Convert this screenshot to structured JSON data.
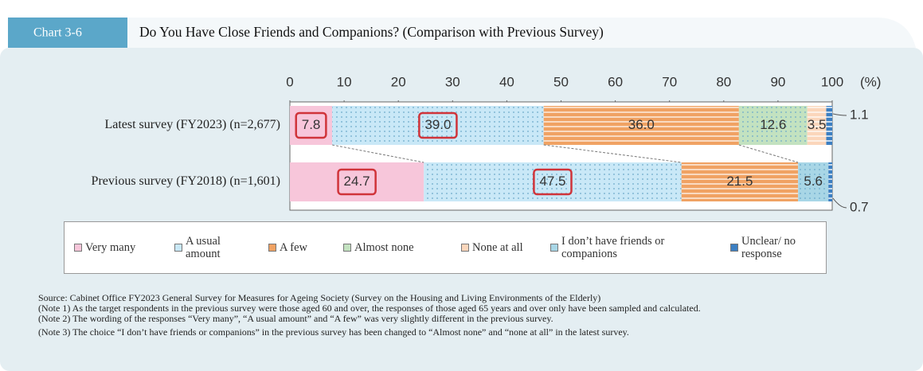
{
  "chart_data": {
    "type": "stacked_barh",
    "chart_number": "Chart 3-6",
    "title": "Do You Have Close Friends and Companions? (Comparison with Previous Survey)",
    "unit_label": "(%)",
    "categories": [
      "Latest survey (FY2023) (n=2,677)",
      "Previous survey (FY2018) (n=1,601)"
    ],
    "series": [
      {
        "name": "Very many",
        "color": "#f7c6da",
        "pattern": "solid",
        "values": [
          7.8,
          24.7
        ],
        "value_labels": [
          "7.8",
          "24.7"
        ]
      },
      {
        "name": "A usual amount",
        "color": "#c9e8f7",
        "pattern": "dots",
        "values": [
          39.0,
          47.5
        ],
        "value_labels": [
          "39.0",
          "47.5"
        ]
      },
      {
        "name": "A few",
        "color": "#f0a263",
        "pattern": "stripes",
        "values": [
          36.0,
          21.5
        ],
        "value_labels": [
          "36.0",
          "21.5"
        ]
      },
      {
        "name": "Almost none",
        "color": "#c3e2c0",
        "pattern": "dots",
        "values": [
          12.6,
          null
        ],
        "value_labels": [
          "12.6",
          null
        ]
      },
      {
        "name": "None at all",
        "color": "#fbd6bb",
        "pattern": "stripes",
        "values": [
          3.5,
          null
        ],
        "value_labels": [
          "3.5",
          null
        ]
      },
      {
        "name": "I don’t have friends or companions",
        "color": "#a8d6e6",
        "pattern": "dots",
        "values": [
          null,
          5.6
        ],
        "value_labels": [
          null,
          "5.6"
        ]
      },
      {
        "name": "Unclear/ no response",
        "color": "#3c7fc2",
        "pattern": "dashes",
        "values": [
          1.1,
          0.7
        ],
        "value_labels": [
          "1.1",
          "0.7"
        ]
      }
    ],
    "highlight": [
      0,
      1
    ],
    "xlim": [
      0,
      100
    ],
    "xticks": [
      0,
      10,
      20,
      30,
      40,
      50,
      60,
      70,
      80,
      90,
      100
    ],
    "notes": [
      "Source: Cabinet Office FY2023 General Survey for Measures for Ageing Society (Survey on the Housing and Living Environments of the Elderly)",
      "(Note 1) As the target respondents in the previous survey were those aged 60 and over, the responses of those aged 65 years and over only have been sampled and calculated.",
      "(Note 2) The wording of the responses “Very many”, “A usual amount” and “A few” was very slightly different in the previous survey.",
      "(Note 3) The choice “I don’t have friends or companions” in the previous survey has been changed to “Almost none” and “none at all” in the latest survey."
    ]
  }
}
